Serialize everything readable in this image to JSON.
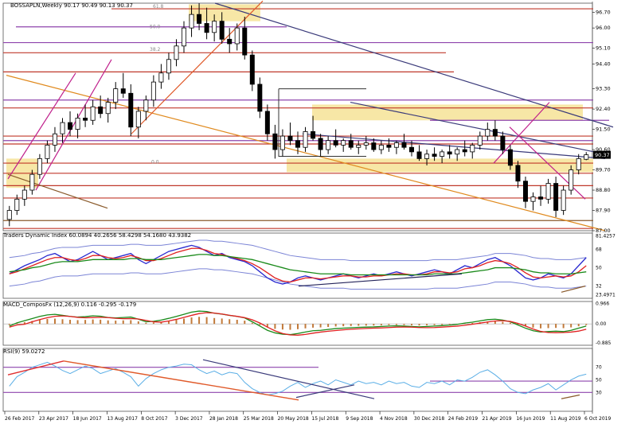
{
  "chart_data": [
    {
      "type": "candlestick",
      "title": "BOSSAPLN,Weekly  90.17 90.49 90.13 90.37",
      "last_price": "90.37",
      "y_ticks": [
        "96.70",
        "96.00",
        "95.10",
        "94.40",
        "93.30",
        "92.40",
        "91.50",
        "90.60",
        "89.70",
        "88.80",
        "87.90",
        "87.00"
      ],
      "ylim": [
        87.0,
        97.1
      ],
      "fib_labels": [
        "61.8",
        "50.0",
        "38.2",
        "0.0"
      ],
      "colors": {
        "bull": "#ffffff",
        "bear": "#000000",
        "resistance": "#c0392b",
        "purple": "#8e44ad",
        "trend": "#3a3a7a",
        "orange": "#e08a1e",
        "highlight": "#f7e7a6"
      },
      "candles": [
        [
          87.5,
          88.1,
          87.2,
          87.9
        ],
        [
          87.9,
          88.6,
          87.7,
          88.4
        ],
        [
          88.4,
          89.0,
          88.1,
          88.8
        ],
        [
          88.8,
          89.7,
          88.6,
          89.5
        ],
        [
          89.5,
          90.4,
          89.3,
          90.2
        ],
        [
          90.2,
          91.0,
          90.0,
          90.8
        ],
        [
          90.8,
          91.6,
          90.5,
          91.3
        ],
        [
          91.3,
          92.0,
          90.9,
          91.8
        ],
        [
          91.8,
          92.3,
          91.2,
          91.5
        ],
        [
          91.5,
          92.2,
          91.1,
          92.0
        ],
        [
          92.0,
          92.6,
          91.6,
          91.9
        ],
        [
          91.9,
          92.8,
          91.7,
          92.5
        ],
        [
          92.5,
          93.0,
          92.0,
          92.2
        ],
        [
          92.2,
          92.9,
          91.8,
          92.7
        ],
        [
          92.7,
          93.6,
          92.4,
          93.3
        ],
        [
          93.3,
          94.0,
          92.9,
          93.1
        ],
        [
          93.1,
          93.5,
          91.2,
          91.6
        ],
        [
          91.6,
          92.5,
          91.1,
          92.3
        ],
        [
          92.3,
          93.0,
          91.9,
          92.8
        ],
        [
          92.8,
          93.9,
          92.5,
          93.6
        ],
        [
          93.6,
          94.4,
          93.3,
          94.0
        ],
        [
          94.0,
          94.9,
          93.7,
          94.6
        ],
        [
          94.6,
          95.5,
          94.3,
          95.2
        ],
        [
          95.2,
          96.3,
          94.9,
          96.0
        ],
        [
          96.0,
          97.0,
          95.6,
          96.6
        ],
        [
          96.6,
          97.1,
          95.9,
          96.2
        ],
        [
          96.2,
          96.9,
          95.5,
          95.8
        ],
        [
          95.8,
          96.6,
          95.4,
          96.3
        ],
        [
          96.3,
          96.7,
          95.3,
          95.5
        ],
        [
          95.5,
          96.0,
          94.9,
          95.3
        ],
        [
          95.3,
          96.2,
          95.0,
          96.0
        ],
        [
          96.0,
          96.5,
          94.6,
          94.8
        ],
        [
          94.8,
          95.0,
          93.2,
          93.5
        ],
        [
          93.5,
          93.8,
          92.0,
          92.3
        ],
        [
          92.3,
          92.6,
          91.0,
          91.3
        ],
        [
          91.3,
          91.7,
          90.2,
          90.6
        ],
        [
          90.6,
          91.5,
          90.3,
          91.2
        ],
        [
          91.2,
          91.8,
          90.8,
          91.0
        ],
        [
          91.0,
          91.4,
          90.4,
          90.7
        ],
        [
          90.7,
          91.6,
          90.5,
          91.4
        ],
        [
          91.4,
          92.1,
          91.0,
          91.1
        ],
        [
          91.1,
          91.3,
          90.3,
          90.6
        ],
        [
          90.6,
          91.2,
          90.4,
          91.0
        ],
        [
          91.0,
          91.5,
          90.7,
          90.8
        ],
        [
          90.8,
          91.1,
          90.5,
          91.0
        ],
        [
          91.0,
          91.3,
          90.6,
          90.7
        ],
        [
          90.7,
          91.0,
          90.4,
          90.8
        ],
        [
          90.8,
          91.2,
          90.6,
          90.9
        ],
        [
          90.9,
          91.1,
          90.5,
          90.6
        ],
        [
          90.6,
          91.0,
          90.4,
          90.8
        ],
        [
          90.8,
          91.1,
          90.5,
          90.7
        ],
        [
          90.7,
          91.0,
          90.4,
          90.9
        ],
        [
          90.9,
          91.3,
          90.6,
          90.7
        ],
        [
          90.7,
          91.0,
          90.3,
          90.5
        ],
        [
          90.5,
          90.8,
          90.1,
          90.2
        ],
        [
          90.2,
          90.6,
          89.9,
          90.4
        ],
        [
          90.4,
          90.7,
          90.1,
          90.3
        ],
        [
          90.3,
          90.6,
          90.0,
          90.5
        ],
        [
          90.5,
          90.8,
          90.2,
          90.4
        ],
        [
          90.4,
          90.7,
          90.1,
          90.6
        ],
        [
          90.6,
          91.0,
          90.3,
          90.5
        ],
        [
          90.5,
          90.9,
          90.2,
          90.8
        ],
        [
          90.8,
          91.4,
          90.6,
          91.2
        ],
        [
          91.2,
          91.8,
          91.0,
          91.5
        ],
        [
          91.5,
          91.9,
          91.0,
          91.2
        ],
        [
          91.2,
          91.4,
          90.4,
          90.6
        ],
        [
          90.6,
          90.8,
          89.7,
          89.9
        ],
        [
          89.9,
          90.1,
          88.9,
          89.2
        ],
        [
          89.2,
          89.4,
          88.0,
          88.3
        ],
        [
          88.3,
          88.7,
          87.9,
          88.5
        ],
        [
          88.5,
          89.0,
          88.1,
          88.4
        ],
        [
          88.4,
          89.3,
          88.2,
          89.1
        ],
        [
          89.1,
          89.4,
          87.6,
          87.9
        ],
        [
          87.9,
          89.0,
          87.7,
          88.8
        ],
        [
          88.8,
          89.9,
          88.6,
          89.7
        ],
        [
          89.7,
          90.4,
          89.5,
          90.2
        ],
        [
          90.17,
          90.49,
          90.13,
          90.37
        ]
      ],
      "x_ticks": [
        "26 Feb 2017",
        "23 Apr 2017",
        "18 Jun 2017",
        "13 Aug 2017",
        "8 Oct 2017",
        "3 Dec 2017",
        "28 Jan 2018",
        "25 Mar 2018",
        "20 May 2018",
        "15 Jul 2018",
        "9 Sep 2018",
        "4 Nov 2018",
        "30 Dec 2018",
        "24 Feb 2019",
        "21 Apr 2019",
        "16 Jun 2019",
        "11 Aug 2019",
        "6 Oct 2019"
      ]
    },
    {
      "type": "line",
      "title": "Traders Dynamic Index 60.0894 40.2656 58.4298 54.1680 43.9382",
      "y_ticks": [
        "81.4257",
        "68",
        "50",
        "32",
        "23.4971"
      ],
      "ylim": [
        20,
        84
      ],
      "series": [
        {
          "color": "#2a2ad0",
          "values": [
            44,
            48,
            52,
            55,
            58,
            62,
            64,
            60,
            56,
            58,
            62,
            66,
            62,
            58,
            60,
            62,
            64,
            58,
            54,
            58,
            62,
            66,
            68,
            70,
            72,
            70,
            66,
            62,
            64,
            60,
            58,
            56,
            52,
            46,
            40,
            36,
            34,
            36,
            40,
            42,
            40,
            38,
            40,
            42,
            44,
            42,
            40,
            42,
            44,
            42,
            44,
            46,
            44,
            42,
            44,
            46,
            48,
            46,
            44,
            48,
            52,
            50,
            54,
            58,
            60,
            56,
            52,
            46,
            40,
            38,
            40,
            44,
            42,
            40,
            44,
            52,
            60
          ]
        },
        {
          "color": "#e02020",
          "values": [
            44,
            46,
            49,
            52,
            55,
            58,
            60,
            60,
            58,
            57,
            59,
            62,
            62,
            60,
            59,
            60,
            62,
            60,
            57,
            57,
            59,
            62,
            65,
            67,
            69,
            69,
            67,
            64,
            63,
            61,
            59,
            57,
            54,
            50,
            45,
            40,
            37,
            36,
            38,
            40,
            40,
            39,
            40,
            41,
            42,
            42,
            41,
            41,
            42,
            42,
            43,
            44,
            44,
            43,
            43,
            44,
            46,
            46,
            45,
            46,
            49,
            50,
            52,
            55,
            57,
            56,
            54,
            50,
            45,
            41,
            40,
            41,
            42,
            41,
            42,
            46,
            52
          ]
        },
        {
          "color": "#1a8a1a",
          "values": [
            46,
            47,
            48,
            50,
            51,
            53,
            55,
            56,
            56,
            56,
            57,
            58,
            58,
            58,
            58,
            58,
            59,
            59,
            58,
            58,
            58,
            59,
            60,
            61,
            62,
            63,
            63,
            62,
            62,
            61,
            60,
            59,
            58,
            56,
            54,
            52,
            50,
            48,
            47,
            46,
            45,
            44,
            44,
            44,
            44,
            43,
            43,
            43,
            43,
            43,
            43,
            43,
            43,
            43,
            43,
            43,
            44,
            44,
            44,
            44,
            45,
            46,
            47,
            48,
            50,
            50,
            50,
            49,
            48,
            46,
            45,
            45,
            44,
            44,
            44,
            45,
            46
          ]
        }
      ]
    },
    {
      "type": "bar",
      "title": "MACD_ComposFx (12,26,9) 0.116 -0.295 -0.179",
      "y_ticks": [
        "0.966",
        "0.00",
        "-0.885"
      ],
      "ylim": [
        -1.0,
        1.05
      ],
      "values": [
        -0.1,
        0.05,
        0.15,
        0.25,
        0.35,
        0.42,
        0.45,
        0.4,
        0.35,
        0.32,
        0.34,
        0.38,
        0.36,
        0.3,
        0.28,
        0.3,
        0.32,
        0.22,
        0.1,
        0.12,
        0.18,
        0.26,
        0.35,
        0.45,
        0.55,
        0.6,
        0.58,
        0.5,
        0.46,
        0.4,
        0.35,
        0.28,
        0.1,
        -0.1,
        -0.3,
        -0.42,
        -0.48,
        -0.5,
        -0.45,
        -0.38,
        -0.32,
        -0.3,
        -0.26,
        -0.22,
        -0.2,
        -0.18,
        -0.16,
        -0.15,
        -0.14,
        -0.12,
        -0.1,
        -0.09,
        -0.1,
        -0.12,
        -0.14,
        -0.12,
        -0.1,
        -0.08,
        -0.06,
        -0.02,
        0.04,
        0.08,
        0.14,
        0.2,
        0.22,
        0.18,
        0.1,
        -0.05,
        -0.2,
        -0.32,
        -0.38,
        -0.36,
        -0.34,
        -0.36,
        -0.3,
        -0.2,
        -0.1
      ]
    },
    {
      "type": "line",
      "title": "RSI(9) 59.0272",
      "y_ticks": [
        "70",
        "50",
        "30"
      ],
      "ylim": [
        0,
        100
      ],
      "series": [
        {
          "color": "#5aaee6",
          "values": [
            40,
            55,
            62,
            70,
            74,
            78,
            72,
            65,
            60,
            66,
            72,
            68,
            60,
            64,
            68,
            62,
            55,
            40,
            52,
            60,
            66,
            70,
            72,
            75,
            74,
            66,
            60,
            64,
            58,
            62,
            60,
            46,
            36,
            30,
            26,
            28,
            32,
            40,
            46,
            38,
            44,
            48,
            42,
            50,
            46,
            42,
            48,
            44,
            46,
            42,
            48,
            44,
            46,
            40,
            38,
            46,
            44,
            48,
            42,
            50,
            48,
            54,
            62,
            66,
            58,
            48,
            36,
            30,
            28,
            34,
            38,
            44,
            34,
            42,
            50,
            56,
            59
          ]
        }
      ]
    }
  ]
}
